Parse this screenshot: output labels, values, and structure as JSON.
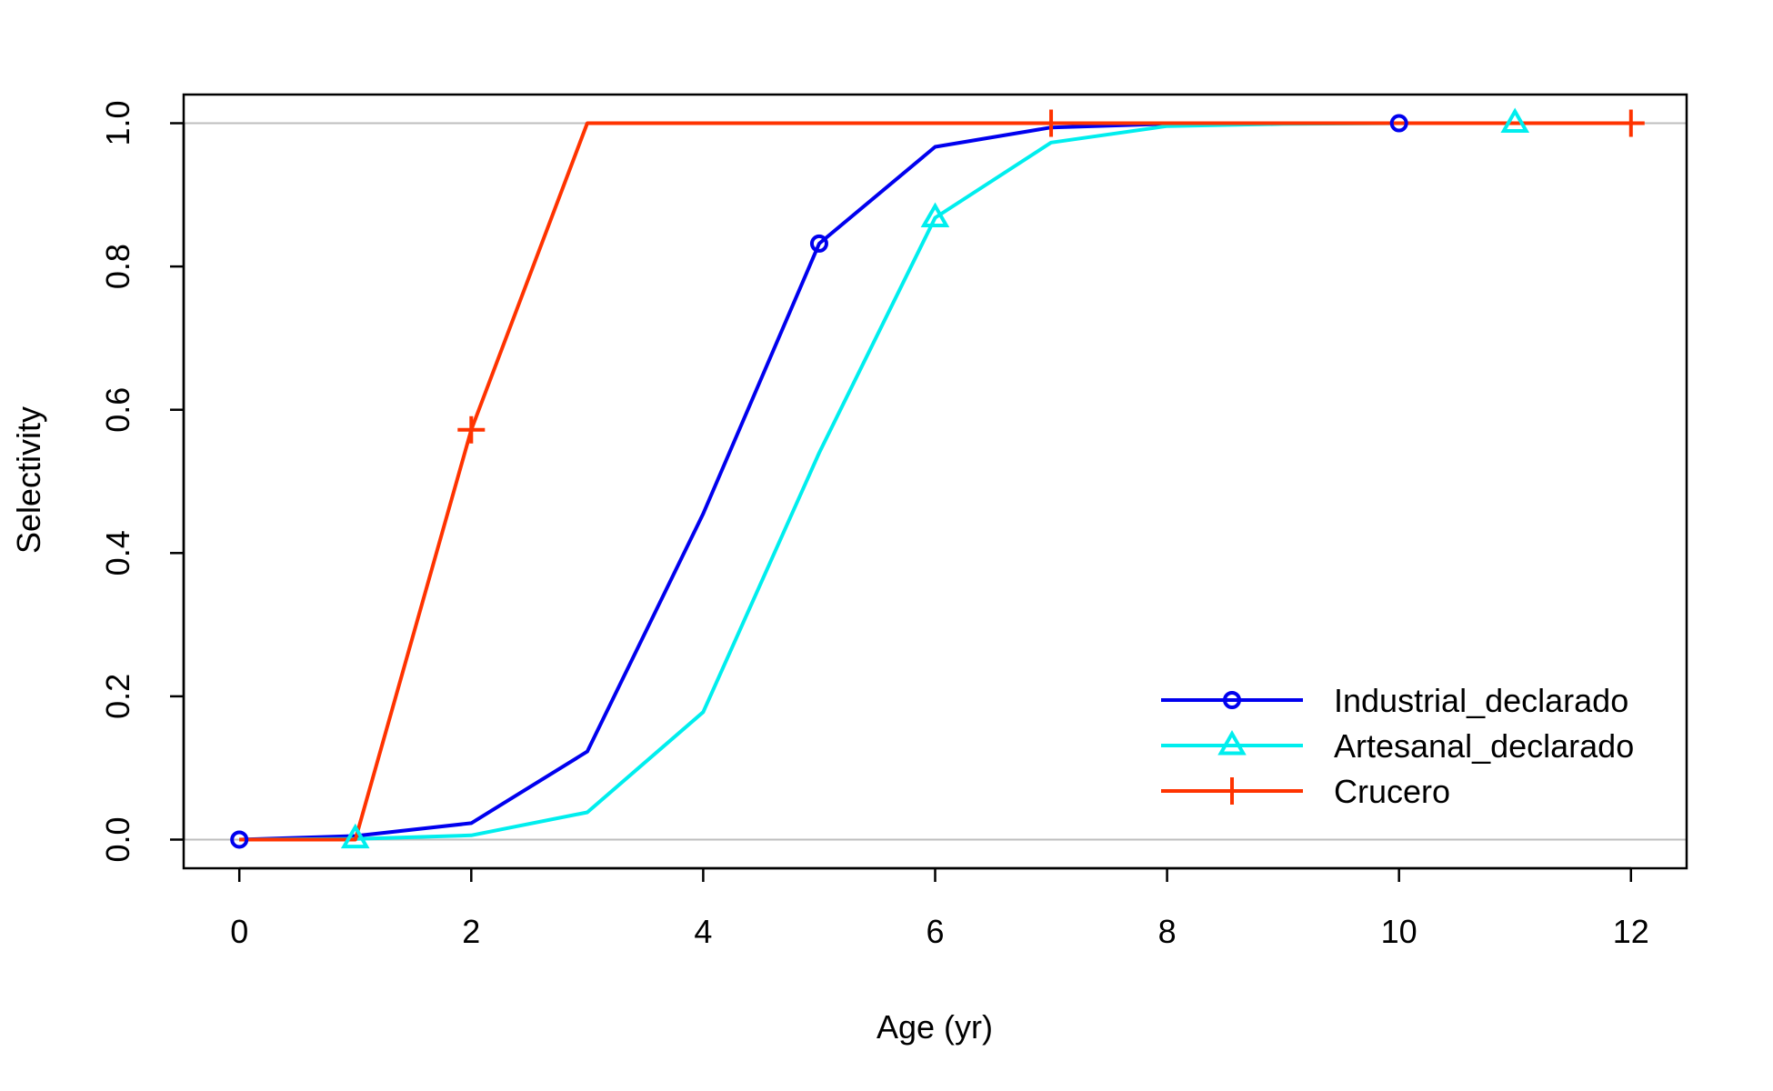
{
  "chart_data": {
    "type": "line",
    "title": "",
    "xlabel": "Age (yr)",
    "ylabel": "Selectivity",
    "xlim": [
      -0.48,
      12.48
    ],
    "ylim": [
      -0.04,
      1.04
    ],
    "xticks": [
      0,
      2,
      4,
      6,
      8,
      10,
      12
    ],
    "yticks": [
      0.0,
      0.2,
      0.4,
      0.6,
      0.8,
      1.0
    ],
    "xtick_labels": [
      "0",
      "2",
      "4",
      "6",
      "8",
      "10",
      "12"
    ],
    "ytick_labels": [
      "0.0",
      "0.2",
      "0.4",
      "0.6",
      "0.8",
      "1.0"
    ],
    "reference_lines": [
      0,
      1
    ],
    "reference_color": "#bebebe",
    "grid": false,
    "legend_position": "bottom-right",
    "series": [
      {
        "name": "Industrial_declarado",
        "color": "#0000ee",
        "marker": "circle",
        "marker_every": 5,
        "x": [
          0,
          1,
          2,
          3,
          4,
          5,
          6,
          7,
          8,
          9,
          10,
          11,
          12
        ],
        "values": [
          0.0,
          0.005,
          0.023,
          0.123,
          0.455,
          0.832,
          0.967,
          0.994,
          0.999,
          1.0,
          1.0,
          1.0,
          1.0
        ]
      },
      {
        "name": "Artesanal_declarado",
        "color": "#00eeee",
        "marker": "triangle",
        "marker_every": 5,
        "marker_offset": 1,
        "x": [
          0,
          1,
          2,
          3,
          4,
          5,
          6,
          7,
          8,
          9,
          10,
          11,
          12
        ],
        "values": [
          0.0,
          0.001,
          0.006,
          0.038,
          0.178,
          0.54,
          0.868,
          0.973,
          0.996,
          0.999,
          1.0,
          1.0,
          1.0
        ]
      },
      {
        "name": "Crucero",
        "color": "#ff3300",
        "marker": "plus",
        "marker_every": 5,
        "marker_offset": 2,
        "x": [
          0,
          1,
          2,
          3,
          4,
          5,
          6,
          7,
          8,
          9,
          10,
          11,
          12
        ],
        "values": [
          0.0,
          0.0,
          0.572,
          1.0,
          1.0,
          1.0,
          1.0,
          1.0,
          1.0,
          1.0,
          1.0,
          1.0,
          1.0
        ]
      }
    ]
  }
}
